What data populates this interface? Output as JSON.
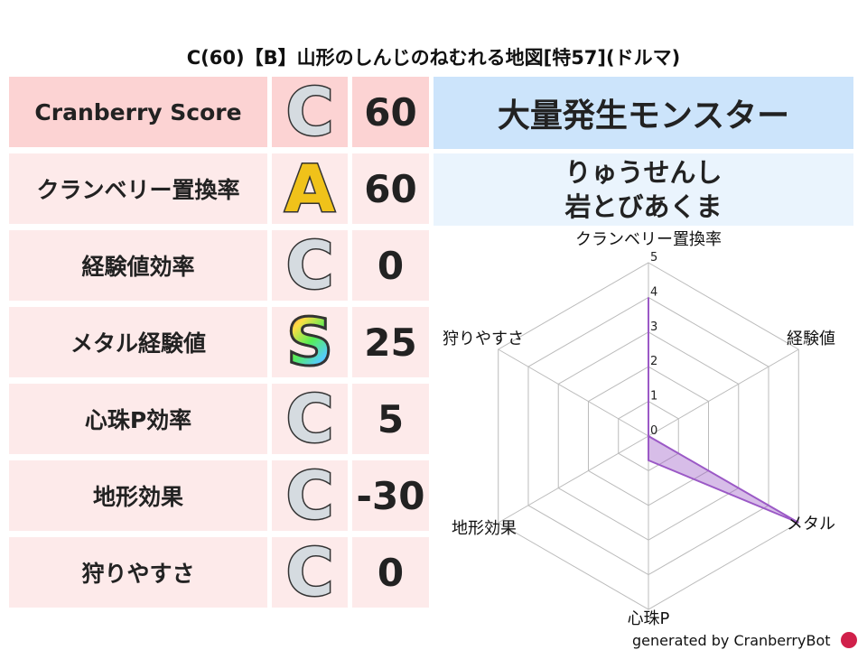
{
  "title": "C(60)【B】山形のしんじのねむれる地図[特57](ドルマ)",
  "rows": [
    {
      "label": "Cranberry Score",
      "grade": "C",
      "value": "60"
    },
    {
      "label": "クランベリー置換率",
      "grade": "A",
      "value": "60"
    },
    {
      "label": "経験値効率",
      "grade": "C",
      "value": "0"
    },
    {
      "label": "メタル経験値",
      "grade": "S",
      "value": "25"
    },
    {
      "label": "心珠P効率",
      "grade": "C",
      "value": "5"
    },
    {
      "label": "地形効果",
      "grade": "C",
      "value": "-30"
    },
    {
      "label": "狩りやすさ",
      "grade": "C",
      "value": "0"
    }
  ],
  "monster_header": "大量発生モンスター",
  "monsters": [
    "りゅうせんし",
    "岩とびあくま"
  ],
  "chart_data": {
    "type": "radar",
    "axes": [
      "クランベリー置換率",
      "経験値",
      "メタル",
      "心珠P",
      "地形効果",
      "狩りやすさ"
    ],
    "values": [
      4,
      0,
      5,
      0.7,
      0,
      0
    ],
    "ticks": [
      "0",
      "1",
      "2",
      "3",
      "4",
      "5"
    ],
    "range": [
      0,
      5
    ],
    "color": "#9b59c6"
  },
  "credit": "generated by CranberryBot",
  "colors": {
    "header_row": "#fcd3d3",
    "row": "#fdeaea",
    "monster_header": "#cce4fb",
    "monster_box": "#eaf4fd"
  }
}
